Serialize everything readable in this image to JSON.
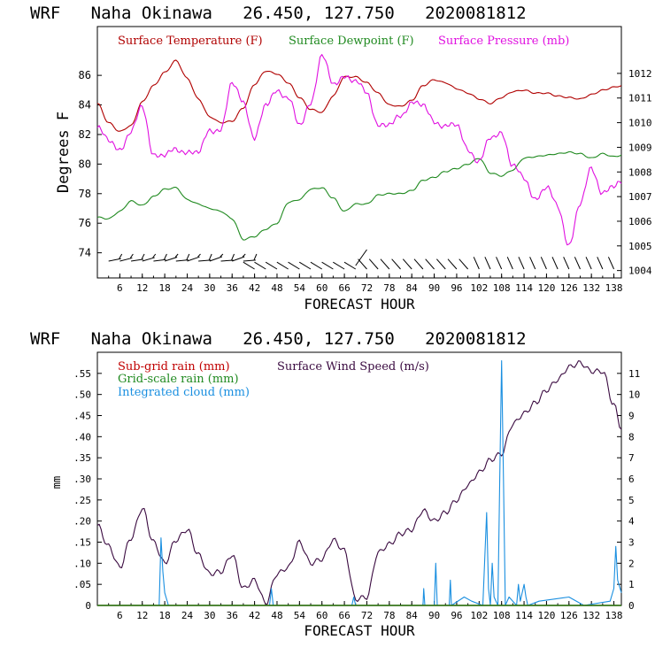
{
  "chart_data": [
    {
      "type": "line",
      "title": "WRF   Naha Okinawa   26.450, 127.750   2020081812",
      "xlabel": "FORECAST HOUR",
      "ylabel": "Degrees F",
      "y2label": "",
      "xlim": [
        0,
        140
      ],
      "ylim": [
        72.3,
        89.3
      ],
      "y2lim": [
        1003.7,
        1013.9
      ],
      "x_ticks": [
        6,
        12,
        18,
        24,
        30,
        36,
        42,
        48,
        54,
        60,
        66,
        72,
        78,
        84,
        90,
        96,
        102,
        108,
        114,
        120,
        126,
        132,
        138
      ],
      "y_ticks": [
        74,
        76,
        78,
        80,
        82,
        84,
        86
      ],
      "y2_ticks": [
        1004,
        1005,
        1006,
        1007,
        1008,
        1009,
        1010,
        1011,
        1012
      ],
      "legend": [
        "Surface Temperature (F)",
        "Surface Dewpoint (F)",
        "Surface Pressure (mb)"
      ],
      "colors": {
        "temperature": "#b00000",
        "dewpoint": "#208a20",
        "pressure": "#e010e0"
      },
      "series": [
        {
          "name": "Surface Temperature (F)",
          "axis": "left",
          "x": [
            0,
            3,
            6,
            9,
            12,
            15,
            18,
            21,
            24,
            27,
            30,
            33,
            36,
            39,
            42,
            45,
            48,
            51,
            54,
            57,
            60,
            63,
            66,
            69,
            72,
            75,
            78,
            81,
            84,
            87,
            90,
            93,
            96,
            99,
            102,
            105,
            108,
            111,
            114,
            117,
            120,
            123,
            126,
            129,
            132,
            135,
            138,
            140
          ],
          "values": [
            84.1,
            82.8,
            82.2,
            82.6,
            84.2,
            85.3,
            86.2,
            87.0,
            85.8,
            84.4,
            83.2,
            82.8,
            82.9,
            83.8,
            85.4,
            86.3,
            86.1,
            85.5,
            84.5,
            83.7,
            83.5,
            84.6,
            85.9,
            85.9,
            85.5,
            84.8,
            84.0,
            83.9,
            84.3,
            85.3,
            85.7,
            85.5,
            85.1,
            84.8,
            84.4,
            84.1,
            84.5,
            84.9,
            85.0,
            84.8,
            84.8,
            84.6,
            84.5,
            84.4,
            84.7,
            85.0,
            85.2,
            85.3
          ]
        },
        {
          "name": "Surface Dewpoint (F)",
          "axis": "left",
          "x": [
            0,
            3,
            6,
            9,
            12,
            15,
            18,
            21,
            24,
            27,
            30,
            33,
            36,
            39,
            42,
            45,
            48,
            51,
            54,
            57,
            60,
            63,
            66,
            69,
            72,
            75,
            78,
            81,
            84,
            87,
            90,
            93,
            96,
            99,
            102,
            105,
            108,
            111,
            114,
            117,
            120,
            123,
            126,
            129,
            132,
            135,
            138,
            140
          ],
          "values": [
            76.4,
            76.3,
            76.8,
            77.5,
            77.2,
            77.8,
            78.3,
            78.4,
            77.6,
            77.3,
            77.0,
            76.8,
            76.3,
            74.9,
            75.1,
            75.6,
            76.0,
            77.4,
            77.6,
            78.3,
            78.4,
            77.7,
            76.8,
            77.3,
            77.3,
            77.9,
            78.0,
            78.0,
            78.2,
            78.9,
            79.1,
            79.5,
            79.7,
            80.0,
            80.4,
            79.4,
            79.2,
            79.6,
            80.4,
            80.5,
            80.6,
            80.7,
            80.8,
            80.7,
            80.4,
            80.7,
            80.5,
            80.6
          ]
        },
        {
          "name": "Surface Pressure (mb)",
          "axis": "right",
          "x": [
            0,
            3,
            6,
            9,
            12,
            15,
            18,
            21,
            24,
            27,
            30,
            33,
            36,
            39,
            42,
            45,
            48,
            51,
            54,
            57,
            60,
            63,
            66,
            69,
            72,
            75,
            78,
            81,
            84,
            87,
            90,
            93,
            96,
            99,
            102,
            105,
            108,
            111,
            114,
            117,
            120,
            123,
            126,
            129,
            132,
            135,
            138,
            140
          ],
          "values": [
            1009.8,
            1009.2,
            1009.0,
            1009.6,
            1010.6,
            1008.8,
            1008.6,
            1008.9,
            1008.9,
            1008.7,
            1009.7,
            1009.8,
            1011.5,
            1010.9,
            1009.4,
            1010.6,
            1011.4,
            1011.0,
            1009.8,
            1010.9,
            1012.7,
            1011.5,
            1012.0,
            1011.6,
            1011.2,
            1010.0,
            1009.8,
            1010.3,
            1010.9,
            1010.6,
            1010.1,
            1009.9,
            1009.8,
            1009.0,
            1008.4,
            1009.3,
            1009.7,
            1008.2,
            1007.7,
            1007.0,
            1007.3,
            1006.6,
            1005.1,
            1006.6,
            1008.2,
            1007.2,
            1007.3,
            1007.6
          ]
        }
      ],
      "annotations": [
        "wind barbs along the bottom of the panel"
      ]
    },
    {
      "type": "line",
      "title": "WRF   Naha Okinawa   26.450, 127.750   2020081812",
      "xlabel": "FORECAST HOUR",
      "ylabel": "mm",
      "xlim": [
        0,
        140
      ],
      "ylim": [
        0,
        0.6
      ],
      "y2lim": [
        0,
        12
      ],
      "x_ticks": [
        6,
        12,
        18,
        24,
        30,
        36,
        42,
        48,
        54,
        60,
        66,
        72,
        78,
        84,
        90,
        96,
        102,
        108,
        114,
        120,
        126,
        132,
        138
      ],
      "y_ticks": [
        0,
        0.05,
        0.1,
        0.15,
        0.2,
        0.25,
        0.3,
        0.35,
        0.4,
        0.45,
        0.5,
        0.55
      ],
      "y_tick_labels": [
        "0",
        ".05",
        ".10",
        ".15",
        ".20",
        ".25",
        ".30",
        ".35",
        ".40",
        ".45",
        ".50",
        ".55"
      ],
      "y2_ticks": [
        0,
        1,
        2,
        3,
        4,
        5,
        6,
        7,
        8,
        9,
        10,
        11
      ],
      "legend": [
        "Sub-grid rain (mm)",
        "Grid-scale rain (mm)",
        "Integrated cloud (mm)",
        "Surface Wind Speed (m/s)"
      ],
      "colors": {
        "subgrid": "#c00000",
        "gridscale": "#208a20",
        "cloud": "#1a8fe0",
        "wind": "#3a0a40"
      },
      "series": [
        {
          "name": "Surface Wind Speed (m/s)",
          "axis": "right",
          "x": [
            0,
            3,
            6,
            9,
            12,
            15,
            18,
            21,
            24,
            27,
            30,
            33,
            36,
            39,
            42,
            45,
            48,
            51,
            54,
            57,
            60,
            63,
            66,
            69,
            72,
            75,
            78,
            81,
            84,
            87,
            90,
            93,
            96,
            99,
            102,
            105,
            108,
            111,
            114,
            117,
            120,
            123,
            126,
            129,
            132,
            135,
            138,
            140
          ],
          "values": [
            3.8,
            2.8,
            1.8,
            3.2,
            4.6,
            3.0,
            2.0,
            3.1,
            3.6,
            2.4,
            1.5,
            1.6,
            2.4,
            0.8,
            1.2,
            0.1,
            1.5,
            1.8,
            3.0,
            2.0,
            2.2,
            3.1,
            2.6,
            0.3,
            0.4,
            2.5,
            2.9,
            3.4,
            3.6,
            4.5,
            4.0,
            4.4,
            5.0,
            5.7,
            6.3,
            6.9,
            7.2,
            8.6,
            9.1,
            9.6,
            10.2,
            10.7,
            11.3,
            11.5,
            11.1,
            11.1,
            9.5,
            8.4
          ]
        },
        {
          "name": "Integrated cloud (mm)",
          "axis": "left",
          "x": [
            0,
            16.5,
            17,
            17.5,
            18,
            19,
            46,
            46.5,
            47,
            68,
            68.5,
            69,
            87,
            87.2,
            87.5,
            90,
            90.4,
            90.8,
            94,
            94.3,
            94.6,
            98,
            100,
            103,
            104,
            104.5,
            105,
            105.5,
            106,
            107,
            107.5,
            108,
            108.5,
            109,
            110,
            112,
            112.5,
            113,
            114,
            114.5,
            115,
            118,
            126,
            130,
            137,
            138,
            138.5,
            139,
            140
          ],
          "values": [
            0,
            0,
            0.16,
            0.08,
            0.03,
            0,
            0,
            0.04,
            0,
            0,
            0.02,
            0,
            0,
            0.04,
            0,
            0,
            0.1,
            0,
            0,
            0.06,
            0,
            0.02,
            0.01,
            0,
            0.22,
            0.04,
            0,
            0.1,
            0.02,
            0,
            0.3,
            0.58,
            0.3,
            0,
            0.02,
            0,
            0.05,
            0.01,
            0.05,
            0.02,
            0,
            0.01,
            0.02,
            0,
            0.01,
            0.04,
            0.14,
            0.06,
            0.03
          ]
        },
        {
          "name": "Sub-grid rain (mm)",
          "axis": "left",
          "x": [
            0,
            140
          ],
          "values": [
            0,
            0
          ]
        },
        {
          "name": "Grid-scale rain (mm)",
          "axis": "left",
          "x": [
            0,
            140
          ],
          "values": [
            0,
            0
          ]
        }
      ]
    }
  ]
}
